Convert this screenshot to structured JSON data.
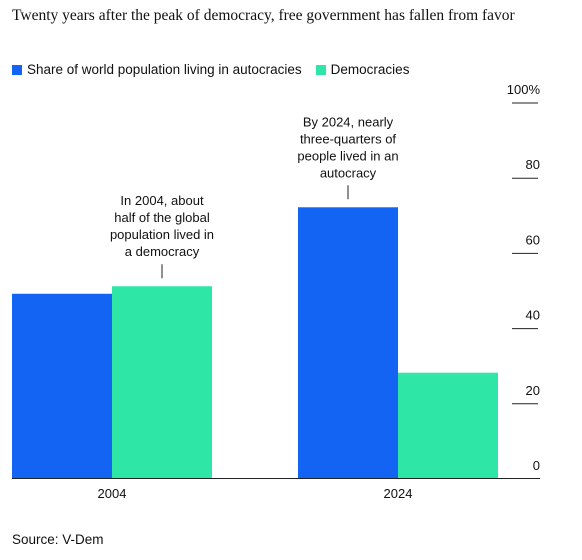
{
  "chart_data": {
    "type": "bar",
    "title": "Twenty years after the peak of democracy, free government has fallen from favor",
    "categories": [
      "2004",
      "2024"
    ],
    "series": [
      {
        "name": "Share of world population living in autocracies",
        "color": "#1464f4",
        "values": [
          49,
          72
        ]
      },
      {
        "name": "Democracies",
        "color": "#2ee6a6",
        "values": [
          51,
          28
        ]
      }
    ],
    "ylim": [
      0,
      100
    ],
    "yticks": [
      {
        "value": 0,
        "label": "0"
      },
      {
        "value": 20,
        "label": "20"
      },
      {
        "value": 40,
        "label": "40"
      },
      {
        "value": 60,
        "label": "60"
      },
      {
        "value": 80,
        "label": "80"
      },
      {
        "value": 100,
        "label": "100%"
      }
    ],
    "annotations": [
      {
        "category": "2004",
        "series": 1,
        "lines": [
          "In 2004, about",
          "half of the global",
          "population lived in",
          "a democracy"
        ]
      },
      {
        "category": "2024",
        "series": 0,
        "lines": [
          "By 2024, nearly",
          "three-quarters of",
          "people lived in an",
          "autocracy"
        ]
      }
    ],
    "legend_position": "top-left",
    "grid": false
  },
  "source": "Source: V-Dem"
}
